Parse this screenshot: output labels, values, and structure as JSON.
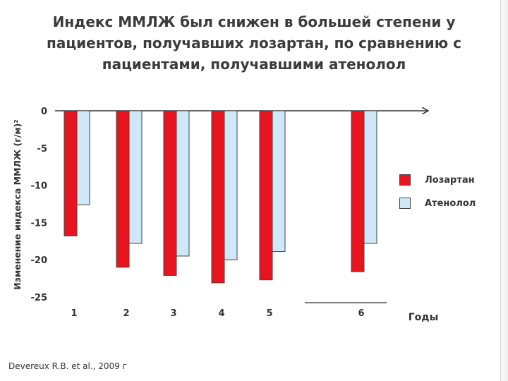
{
  "title_lines": [
    "Индекс ММЛЖ был снижен в большей степени у",
    "пациентов, получавших лозартан, по сравнению с",
    "пациентами, получавшими атенолол"
  ],
  "source": "Devereux R.B. et al., 2009 г",
  "chart_data": {
    "type": "bar",
    "ylabel": "Изменение индекса ММЛЖ (г/м)²",
    "xlabel": "Годы",
    "ylim": [
      -25,
      0
    ],
    "yticks": [
      "0",
      "-5",
      "-10",
      "-15",
      "-20",
      "-25"
    ],
    "categories": [
      "1",
      "2",
      "3",
      "4",
      "5",
      "6"
    ],
    "category_x": [
      1,
      2,
      3,
      4,
      5,
      6
    ],
    "series": [
      {
        "name": "Лозартан",
        "color": "#e8141e",
        "values": [
          -16.8,
          -21.0,
          -22.1,
          -23.1,
          -22.7,
          -21.6
        ]
      },
      {
        "name": "Атенолол",
        "color": "#cfe8f8",
        "values": [
          -12.6,
          -17.8,
          -19.5,
          -20.0,
          -18.9,
          -17.8
        ]
      }
    ],
    "legend_position": "right",
    "grid": false
  }
}
